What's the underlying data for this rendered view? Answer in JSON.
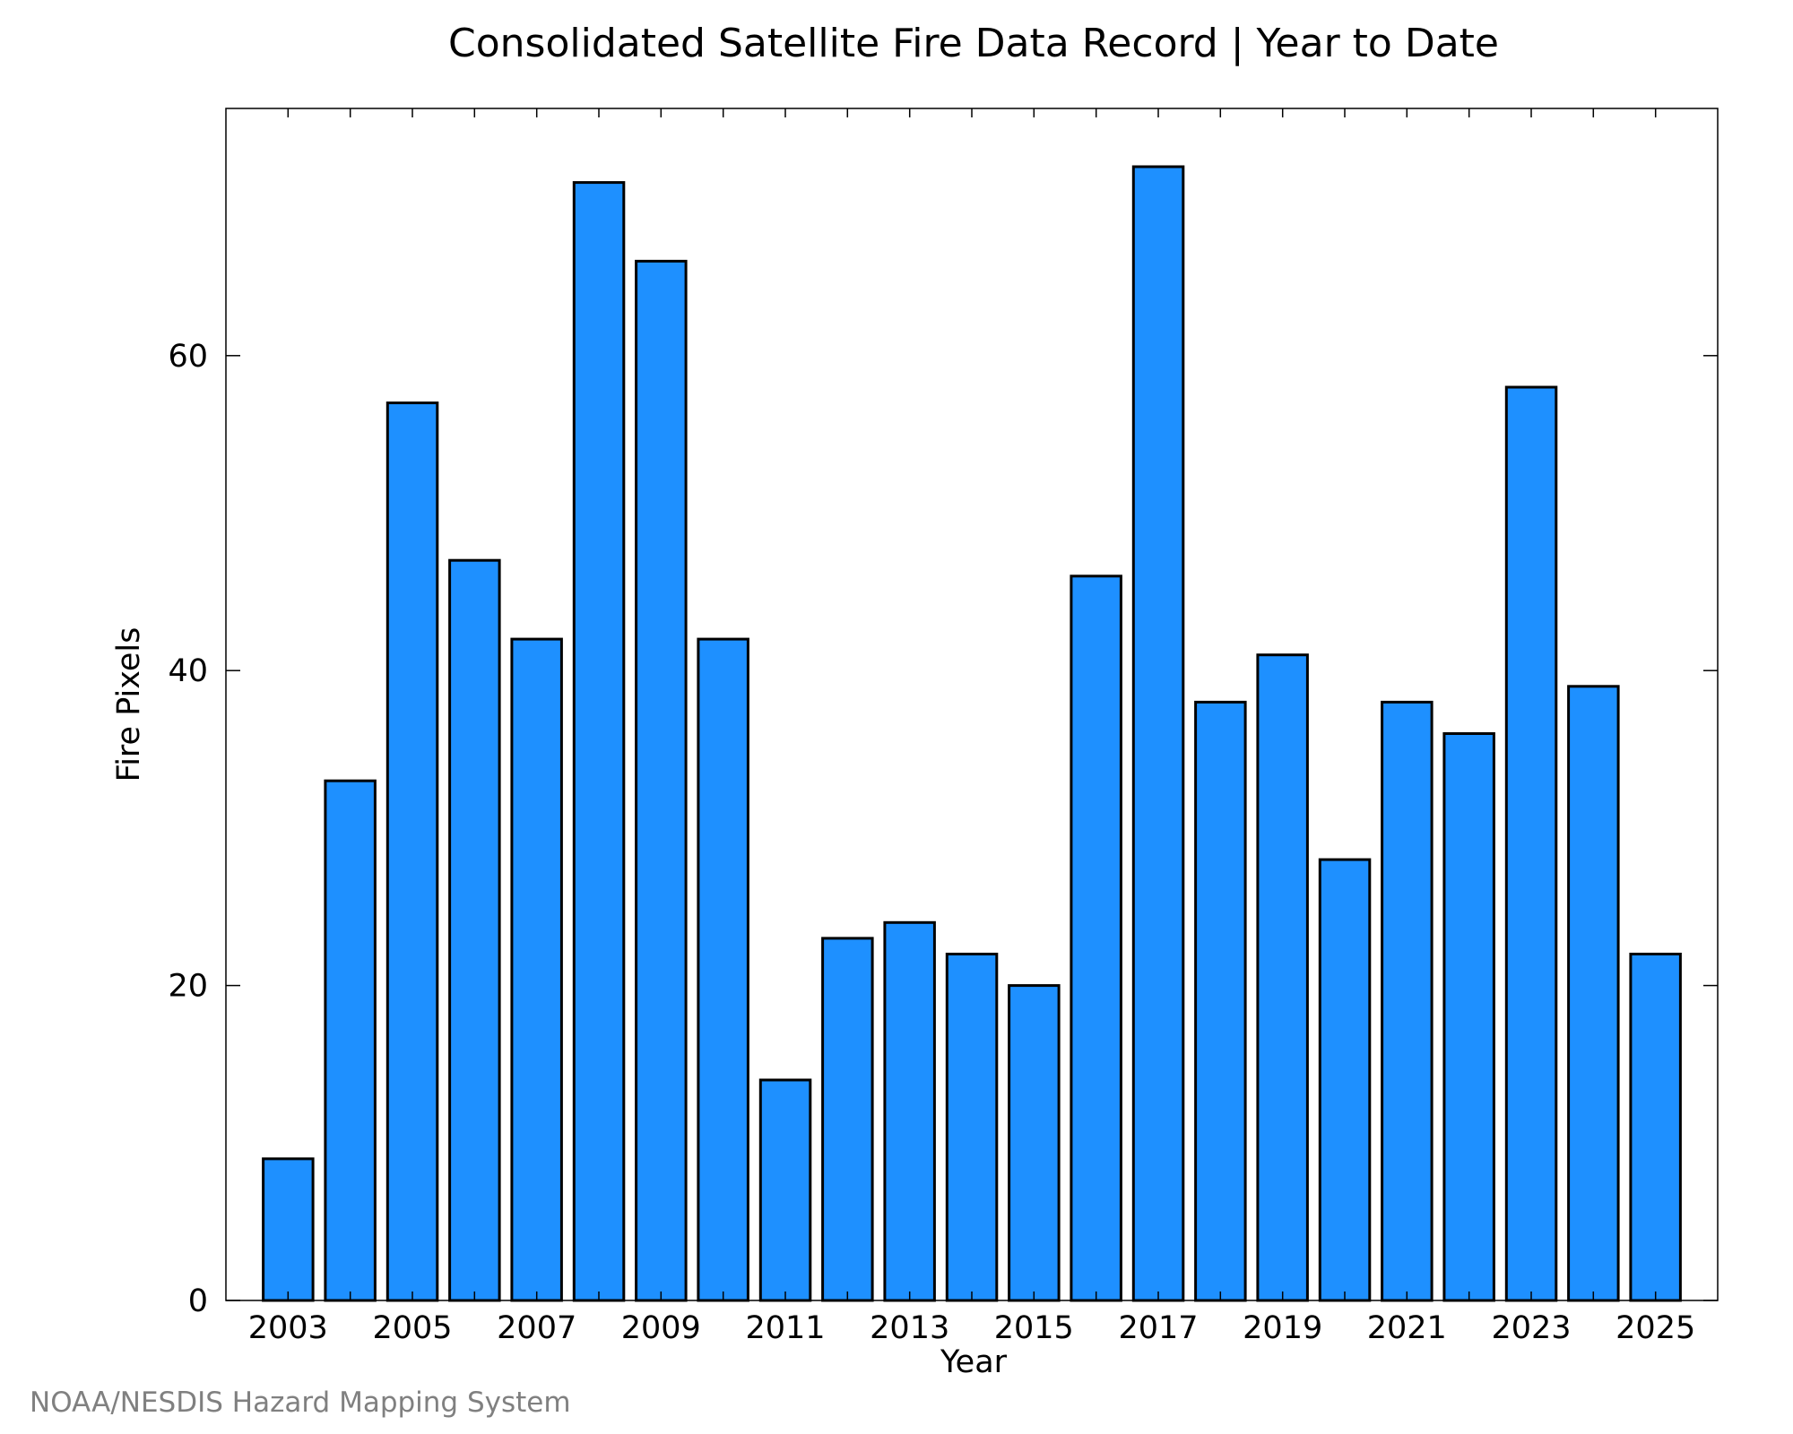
{
  "chart_data": {
    "type": "bar",
    "title": "Consolidated Satellite Fire Data Record | Year to Date",
    "xlabel": "Year",
    "ylabel": "Fire Pixels",
    "categories": [
      "2003",
      "2004",
      "2005",
      "2006",
      "2007",
      "2008",
      "2009",
      "2010",
      "2011",
      "2012",
      "2013",
      "2014",
      "2015",
      "2016",
      "2017",
      "2018",
      "2019",
      "2020",
      "2021",
      "2022",
      "2023",
      "2024",
      "2025"
    ],
    "values": [
      9,
      33,
      57,
      47,
      42,
      71,
      66,
      42,
      14,
      23,
      24,
      22,
      20,
      46,
      72,
      38,
      41,
      28,
      38,
      36,
      58,
      39,
      22
    ],
    "x_tick_labels": [
      "2003",
      "2005",
      "2007",
      "2009",
      "2011",
      "2013",
      "2015",
      "2017",
      "2019",
      "2021",
      "2023",
      "2025"
    ],
    "y_ticks": [
      0,
      20,
      40,
      60
    ],
    "ylim": [
      0,
      75.7
    ],
    "grid": false,
    "bar_color": "#1e90ff",
    "bar_edge_color": "#000000"
  },
  "footer": {
    "source": "NOAA/NESDIS Hazard Mapping System",
    "color": "#808080"
  }
}
